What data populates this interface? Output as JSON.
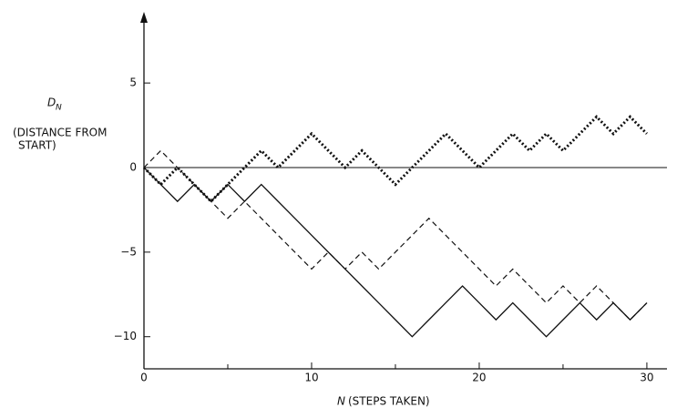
{
  "chart_data": {
    "type": "line",
    "ylabel_symbol": "D",
    "ylabel_subscript": "N",
    "ylabel_lines": [
      "(DISTANCE FROM",
      "START)"
    ],
    "xlabel_symbol": "N",
    "xlabel": "(STEPS TAKEN)",
    "x": [
      0,
      1,
      2,
      3,
      4,
      5,
      6,
      7,
      8,
      9,
      10,
      11,
      12,
      13,
      14,
      15,
      16,
      17,
      18,
      19,
      20,
      21,
      22,
      23,
      24,
      25,
      26,
      27,
      28,
      29,
      30
    ],
    "series": [
      {
        "color": "#111111",
        "dash": "solid",
        "values": [
          0,
          -1,
          -2,
          -1,
          -2,
          -1,
          -2,
          -1,
          -2,
          -3,
          -4,
          -5,
          -6,
          -7,
          -8,
          -9,
          -10,
          -9,
          -8,
          -7,
          -8,
          -9,
          -8,
          -9,
          -10,
          -9,
          -8,
          -9,
          -8,
          -9,
          -8
        ]
      },
      {
        "color": "#111111",
        "dash": "dashed",
        "values": [
          0,
          1,
          0,
          -1,
          -2,
          -3,
          -2,
          -3,
          -4,
          -5,
          -6,
          -5,
          -6,
          -5,
          -6,
          -5,
          -4,
          -3,
          -4,
          -5,
          -6,
          -7,
          -6,
          -7,
          -8,
          -7,
          -8,
          -7,
          -8,
          -9,
          -8
        ]
      },
      {
        "color": "#111111",
        "dash": "dotted",
        "values": [
          0,
          -1,
          0,
          -1,
          -2,
          -1,
          0,
          1,
          0,
          1,
          2,
          1,
          0,
          1,
          0,
          -1,
          0,
          1,
          2,
          1,
          0,
          1,
          2,
          1,
          2,
          1,
          2,
          3,
          2,
          3,
          2
        ]
      }
    ],
    "xlim": [
      0,
      31.2
    ],
    "ylim": [
      -11.9,
      9.1
    ],
    "xticks": [
      0,
      10,
      20,
      30
    ],
    "xminor_ticks": [
      5,
      15,
      25
    ],
    "yticks": [
      {
        "value": 5,
        "label": "5"
      },
      {
        "value": 0,
        "label": "0"
      },
      {
        "value": -5,
        "label": "−5"
      },
      {
        "value": -10,
        "label": "−10"
      }
    ],
    "zero_line": 0
  }
}
